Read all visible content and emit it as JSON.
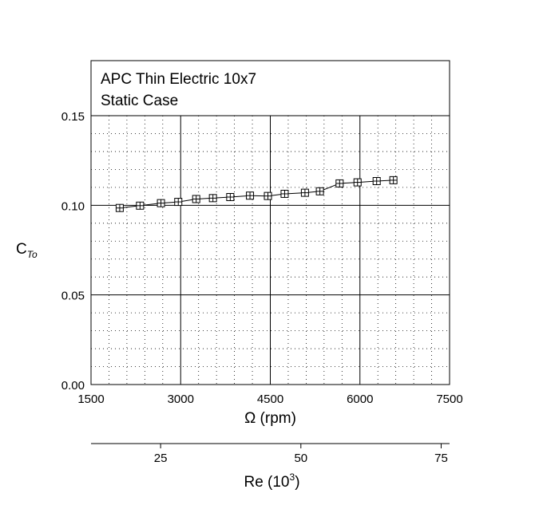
{
  "chart_data": {
    "type": "line",
    "title_lines": [
      "APC Thin Electric 10x7",
      "Static Case"
    ],
    "xlabel": "Ω (rpm)",
    "ylabel": {
      "main": "C",
      "sub": "To"
    },
    "xlim": [
      1500,
      7500
    ],
    "ylim": [
      0.0,
      0.15
    ],
    "x_ticks": [
      1500,
      3000,
      4500,
      6000,
      7500
    ],
    "x_tick_labels": [
      "1500",
      "3000",
      "4500",
      "6000",
      "7500"
    ],
    "y_ticks": [
      0.0,
      0.05,
      0.1,
      0.15
    ],
    "y_tick_labels": [
      "0.00",
      "0.05",
      "0.10",
      "0.15"
    ],
    "grid": {
      "major": true,
      "minor": true
    },
    "marker": "square",
    "series": [
      {
        "x": [
          1980,
          2320,
          2670,
          2960,
          3260,
          3540,
          3830,
          4160,
          4460,
          4740,
          5080,
          5330,
          5660,
          5960,
          6280,
          6560
        ],
        "y": [
          0.0985,
          0.0998,
          0.1012,
          0.1019,
          0.1035,
          0.104,
          0.1046,
          0.1054,
          0.1052,
          0.1064,
          0.107,
          0.1078,
          0.1122,
          0.1128,
          0.1135,
          0.114
        ]
      }
    ],
    "secondary_x_axis": {
      "label": "Re (10",
      "label_sup": "3",
      "label_end": ")",
      "ticks": [
        25,
        50,
        75
      ],
      "tick_labels": [
        "25",
        "50",
        "75"
      ],
      "range": [
        12.6,
        76.5
      ]
    }
  }
}
